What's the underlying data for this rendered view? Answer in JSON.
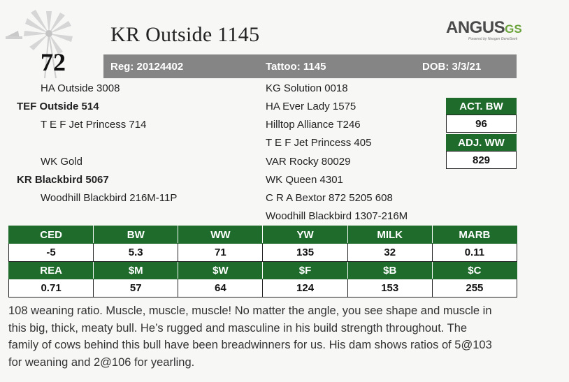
{
  "lot_number": "72",
  "bull_name": "KR Outside 1145",
  "brand": {
    "main": "ANGUS",
    "suffix": "GS",
    "tagline": "Powered by Neogen GeneSeek"
  },
  "registration": {
    "reg": "Reg: 20124402",
    "tattoo": "Tattoo: 1145",
    "dob": "DOB: 3/3/21"
  },
  "pedigree": {
    "sire_sire": "HA Outside 3008",
    "sire": "TEF Outside 514",
    "sire_dam": "T E F Jet Princess 714",
    "dam_sire": "WK Gold",
    "dam": "KR Blackbird 5067",
    "dam_dam": "Woodhill Blackbird 216M-11P",
    "right": [
      "KG Solution 0018",
      "HA Ever Lady 1575",
      "Hilltop Alliance T246",
      "T E F Jet Princess 405",
      "VAR Rocky 80029",
      "WK Queen 4301",
      "C R A Bextor 872 5205 608",
      "Woodhill Blackbird 1307-216M"
    ]
  },
  "weights": {
    "act_bw_label": "ACT. BW",
    "act_bw_value": "96",
    "adj_ww_label": "ADJ. WW",
    "adj_ww_value": "829"
  },
  "epd_rows": [
    {
      "headers": [
        "CED",
        "BW",
        "WW",
        "YW",
        "MILK",
        "MARB"
      ],
      "values": [
        "-5",
        "5.3",
        "71",
        "135",
        "32",
        "0.11"
      ]
    },
    {
      "headers": [
        "REA",
        "$M",
        "$W",
        "$F",
        "$B",
        "$C"
      ],
      "values": [
        "0.71",
        "57",
        "64",
        "124",
        "153",
        "255"
      ]
    }
  ],
  "colors": {
    "green": "#1e6b2c",
    "bar_gray": "#858585"
  },
  "description": "108 weaning ratio. Muscle, muscle, muscle!  No matter the angle, you see shape and muscle in this big, thick, meaty bull. He’s rugged and masculine in his build strength throughout. The family of cows behind this bull have been breadwinners for us.  His dam shows ratios of 5@103 for weaning and 2@106 for yearling."
}
